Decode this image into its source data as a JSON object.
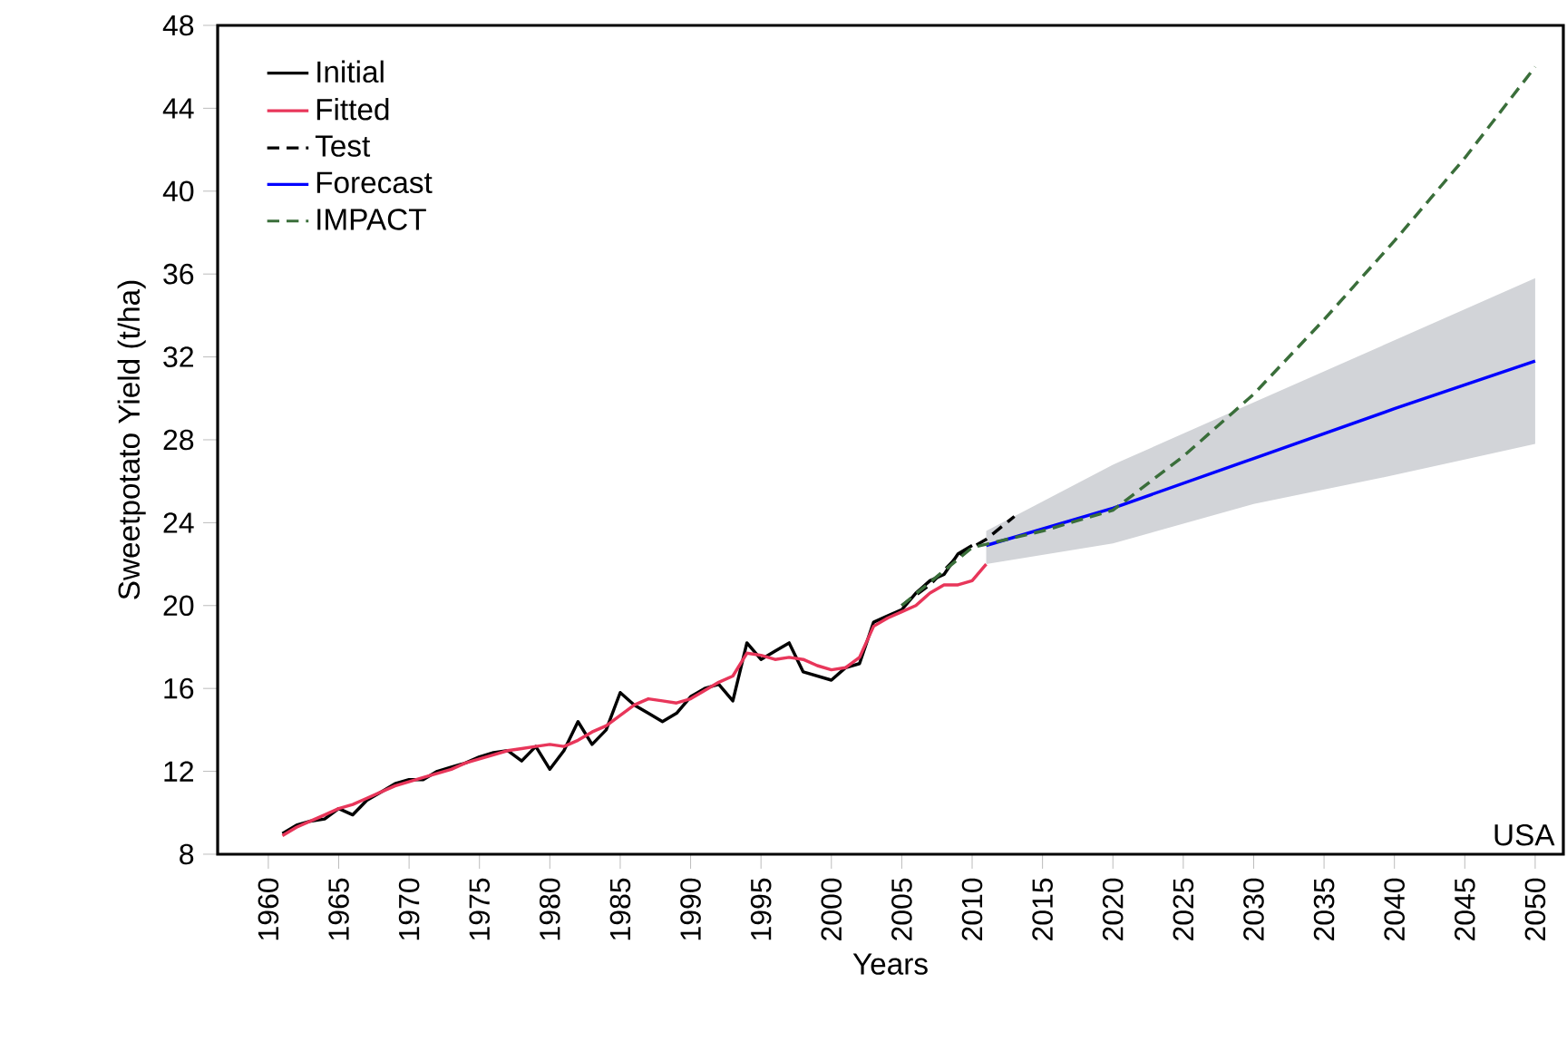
{
  "chart_data": {
    "type": "line",
    "xlabel": "Years",
    "ylabel": "Sweetpotato Yield (t/ha)",
    "xlim": [
      1956.4,
      2052
    ],
    "ylim": [
      8,
      48
    ],
    "xticks": [
      1960,
      1965,
      1970,
      1975,
      1980,
      1985,
      1990,
      1995,
      2000,
      2005,
      2010,
      2015,
      2020,
      2025,
      2030,
      2035,
      2040,
      2045,
      2050
    ],
    "yticks": [
      8,
      12,
      16,
      20,
      24,
      28,
      32,
      36,
      40,
      44,
      48
    ],
    "grid": false,
    "legend": "top left",
    "marker": "none",
    "annotations": [
      "USA"
    ],
    "series": [
      {
        "name": "Initial",
        "color": "#000000",
        "line_style": "solid",
        "x": [
          1961,
          1962,
          1963,
          1964,
          1965,
          1966,
          1967,
          1968,
          1969,
          1970,
          1971,
          1972,
          1973,
          1974,
          1975,
          1976,
          1977,
          1978,
          1979,
          1980,
          1981,
          1982,
          1983,
          1984,
          1985,
          1986,
          1987,
          1988,
          1989,
          1990,
          1991,
          1992,
          1993,
          1994,
          1995,
          1996,
          1997,
          1998,
          1999,
          2000,
          2001,
          2002,
          2003,
          2004,
          2005,
          2006,
          2007,
          2008,
          2009,
          2010
        ],
        "values": [
          9.0,
          9.4,
          9.6,
          9.7,
          10.2,
          9.9,
          10.6,
          11.0,
          11.4,
          11.6,
          11.6,
          12.0,
          12.2,
          12.4,
          12.7,
          12.9,
          13.0,
          12.5,
          13.2,
          12.1,
          13.0,
          14.4,
          13.3,
          14.0,
          15.8,
          15.2,
          14.8,
          14.4,
          14.8,
          15.6,
          16.0,
          16.2,
          15.4,
          18.2,
          17.4,
          17.8,
          18.2,
          16.8,
          16.6,
          16.4,
          17.0,
          17.2,
          19.2,
          19.5,
          19.8,
          20.6,
          21.2,
          21.5,
          22.5,
          22.9
        ]
      },
      {
        "name": "Fitted",
        "color": "#e8365a",
        "line_style": "solid",
        "x": [
          1961,
          1962,
          1963,
          1964,
          1965,
          1966,
          1967,
          1968,
          1969,
          1970,
          1971,
          1972,
          1973,
          1974,
          1975,
          1976,
          1977,
          1978,
          1979,
          1980,
          1981,
          1982,
          1983,
          1984,
          1985,
          1986,
          1987,
          1988,
          1989,
          1990,
          1991,
          1992,
          1993,
          1994,
          1995,
          1996,
          1997,
          1998,
          1999,
          2000,
          2001,
          2002,
          2003,
          2004,
          2005,
          2006,
          2007,
          2008,
          2009,
          2010,
          2011
        ],
        "values": [
          8.9,
          9.3,
          9.6,
          9.9,
          10.2,
          10.4,
          10.7,
          11.0,
          11.3,
          11.5,
          11.7,
          11.9,
          12.1,
          12.4,
          12.6,
          12.8,
          13.0,
          13.1,
          13.2,
          13.3,
          13.2,
          13.5,
          13.9,
          14.2,
          14.7,
          15.2,
          15.5,
          15.4,
          15.3,
          15.5,
          15.9,
          16.3,
          16.6,
          17.7,
          17.6,
          17.4,
          17.5,
          17.4,
          17.1,
          16.9,
          17.0,
          17.5,
          19.0,
          19.4,
          19.7,
          20.0,
          20.6,
          21.0,
          21.0,
          21.2,
          22.0
        ]
      },
      {
        "name": "Test",
        "color": "#000000",
        "line_style": "dashed",
        "x": [
          2005,
          2007,
          2009,
          2011,
          2013
        ],
        "values": [
          20.0,
          21.0,
          22.4,
          23.2,
          24.3
        ]
      },
      {
        "name": "Forecast",
        "color": "#0000ff",
        "line_style": "solid",
        "x": [
          2011,
          2020,
          2030,
          2040,
          2050
        ],
        "values": [
          22.9,
          24.7,
          27.1,
          29.5,
          31.8
        ],
        "lower": [
          22.0,
          23.0,
          24.9,
          26.3,
          27.8
        ],
        "upper": [
          23.6,
          26.8,
          29.8,
          32.8,
          35.8
        ]
      },
      {
        "name": "IMPACT",
        "color": "#3a6e3a",
        "line_style": "dashed",
        "x": [
          2005,
          2010,
          2015,
          2020,
          2025,
          2030,
          2035,
          2040,
          2045,
          2050
        ],
        "values": [
          20.0,
          22.8,
          23.6,
          24.6,
          27.2,
          30.2,
          33.8,
          37.6,
          41.6,
          46.0
        ]
      }
    ]
  }
}
